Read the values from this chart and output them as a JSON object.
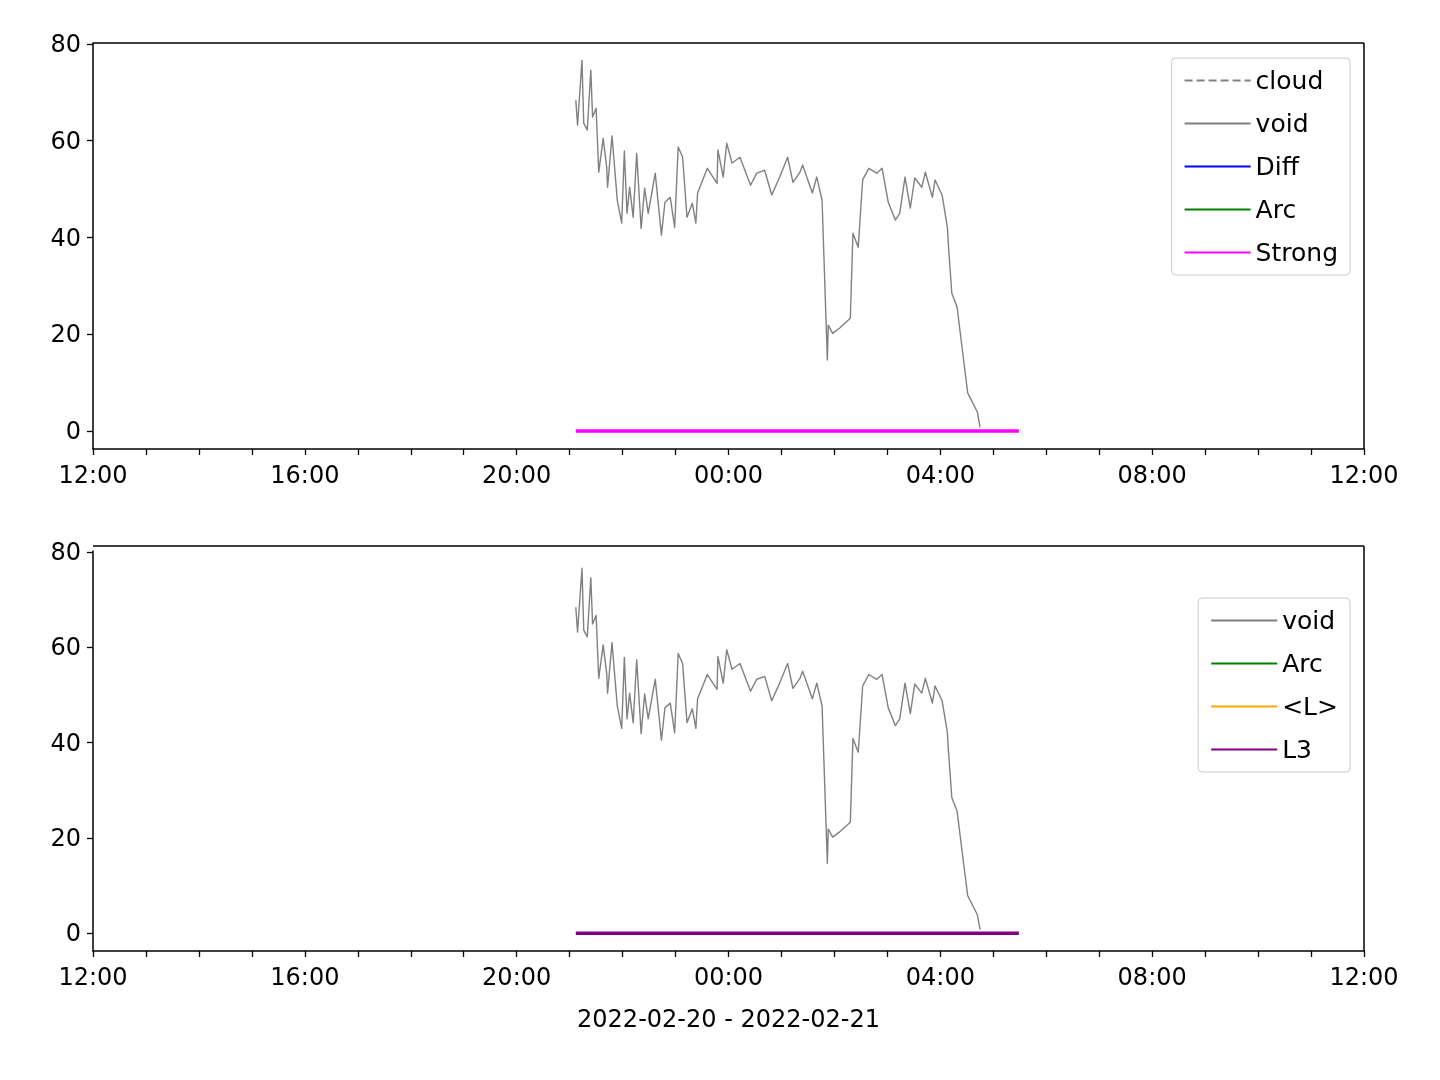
{
  "chart_data": [
    {
      "type": "line",
      "ylim": [
        -3.7,
        80.2
      ],
      "yticks": [
        0,
        20,
        40,
        60,
        80
      ],
      "xlim": [
        "2022-02-20T12:00",
        "2022-02-21T12:00"
      ],
      "xticks": [
        {
          "value": "2022-02-20T12:00",
          "label": "12:00"
        },
        {
          "value": "2022-02-20T13:00",
          "label": null
        },
        {
          "value": "2022-02-20T14:00",
          "label": null
        },
        {
          "value": "2022-02-20T15:00",
          "label": null
        },
        {
          "value": "2022-02-20T16:00",
          "label": "16:00"
        },
        {
          "value": "2022-02-20T17:00",
          "label": null
        },
        {
          "value": "2022-02-20T18:00",
          "label": null
        },
        {
          "value": "2022-02-20T19:00",
          "label": null
        },
        {
          "value": "2022-02-20T20:00",
          "label": "20:00"
        },
        {
          "value": "2022-02-20T21:00",
          "label": null
        },
        {
          "value": "2022-02-20T22:00",
          "label": null
        },
        {
          "value": "2022-02-20T23:00",
          "label": null
        },
        {
          "value": "2022-02-21T00:00",
          "label": "00:00"
        },
        {
          "value": "2022-02-21T01:00",
          "label": null
        },
        {
          "value": "2022-02-21T02:00",
          "label": null
        },
        {
          "value": "2022-02-21T03:00",
          "label": null
        },
        {
          "value": "2022-02-21T04:00",
          "label": "04:00"
        },
        {
          "value": "2022-02-21T05:00",
          "label": null
        },
        {
          "value": "2022-02-21T06:00",
          "label": null
        },
        {
          "value": "2022-02-21T07:00",
          "label": null
        },
        {
          "value": "2022-02-21T08:00",
          "label": "08:00"
        },
        {
          "value": "2022-02-21T09:00",
          "label": null
        },
        {
          "value": "2022-02-21T10:00",
          "label": null
        },
        {
          "value": "2022-02-21T11:00",
          "label": null
        },
        {
          "value": "2022-02-21T12:00",
          "label": "12:00"
        }
      ],
      "legend": "top right",
      "grid": false,
      "marker": "none",
      "series": [
        {
          "name": "cloud",
          "color": "#808080",
          "line_style": "dashed"
        },
        {
          "name": "void",
          "color": "#808080",
          "x": [
            "2022-02-20T21:07",
            "2022-02-20T21:09",
            "2022-02-20T21:14",
            "2022-02-20T21:16",
            "2022-02-20T21:20",
            "2022-02-20T21:24",
            "2022-02-20T21:26",
            "2022-02-20T21:30",
            "2022-02-20T21:33",
            "2022-02-20T21:38",
            "2022-02-20T21:42",
            "2022-02-20T21:43",
            "2022-02-20T21:48",
            "2022-02-20T21:54",
            "2022-02-20T21:59",
            "2022-02-20T22:02",
            "2022-02-20T22:05",
            "2022-02-20T22:08",
            "2022-02-20T22:12",
            "2022-02-20T22:16",
            "2022-02-20T22:21",
            "2022-02-20T22:25",
            "2022-02-20T22:29",
            "2022-02-20T22:37",
            "2022-02-20T22:44",
            "2022-02-20T22:48",
            "2022-02-20T22:54",
            "2022-02-20T22:59",
            "2022-02-20T23:03",
            "2022-02-20T23:08",
            "2022-02-20T23:13",
            "2022-02-20T23:19",
            "2022-02-20T23:23",
            "2022-02-20T23:25",
            "2022-02-20T23:36",
            "2022-02-20T23:47",
            "2022-02-20T23:48",
            "2022-02-20T23:54",
            "2022-02-20T23:58",
            "2022-02-21T00:04",
            "2022-02-21T00:13",
            "2022-02-21T00:25",
            "2022-02-21T00:32",
            "2022-02-21T00:41",
            "2022-02-21T00:49",
            "2022-02-21T00:58",
            "2022-02-21T01:07",
            "2022-02-21T01:13",
            "2022-02-21T01:21",
            "2022-02-21T01:24",
            "2022-02-21T01:35",
            "2022-02-21T01:40",
            "2022-02-21T01:46",
            "2022-02-21T01:52",
            "2022-02-21T01:53",
            "2022-02-21T01:58",
            "2022-02-21T02:06",
            "2022-02-21T02:18",
            "2022-02-21T02:21",
            "2022-02-21T02:27",
            "2022-02-21T02:32",
            "2022-02-21T02:39",
            "2022-02-21T02:48",
            "2022-02-21T02:54",
            "2022-02-21T03:01",
            "2022-02-21T03:09",
            "2022-02-21T03:14",
            "2022-02-21T03:20",
            "2022-02-21T03:26",
            "2022-02-21T03:31",
            "2022-02-21T03:39",
            "2022-02-21T03:43",
            "2022-02-21T03:51",
            "2022-02-21T03:54",
            "2022-02-21T04:02",
            "2022-02-21T04:08",
            "2022-02-21T04:09",
            "2022-02-21T04:13",
            "2022-02-21T04:19",
            "2022-02-21T04:25",
            "2022-02-21T04:31",
            "2022-02-21T04:42",
            "2022-02-21T04:45"
          ],
          "values": [
            68.4,
            63.2,
            76.6,
            63.6,
            62.2,
            74.6,
            64.9,
            66.7,
            53.5,
            60.5,
            54.5,
            50.4,
            61.0,
            47.7,
            43.0,
            57.9,
            45.0,
            50.4,
            44.2,
            57.4,
            41.9,
            50.2,
            45.0,
            53.3,
            40.5,
            47.3,
            48.3,
            42.1,
            58.7,
            56.6,
            44.2,
            47.1,
            43.0,
            49.2,
            54.3,
            51.2,
            58.1,
            52.5,
            59.5,
            55.4,
            56.6,
            50.8,
            53.3,
            53.9,
            48.8,
            52.5,
            56.6,
            51.4,
            53.5,
            55.0,
            49.2,
            52.5,
            47.7,
            14.7,
            21.9,
            20.2,
            21.3,
            23.3,
            40.9,
            38.0,
            51.9,
            54.3,
            53.3,
            54.3,
            47.3,
            43.6,
            45.0,
            52.5,
            46.1,
            52.3,
            50.4,
            53.5,
            48.3,
            51.9,
            48.8,
            42.1,
            38.8,
            28.5,
            25.6,
            16.7,
            7.9,
            3.9,
            0.8
          ]
        },
        {
          "name": "Diff",
          "color": "#0000ff"
        },
        {
          "name": "Arc",
          "color": "#008000"
        },
        {
          "name": "Strong",
          "color": "#ff00ff",
          "x": [
            "2022-02-20T21:07",
            "2022-02-21T05:29"
          ],
          "values": [
            0,
            0
          ]
        }
      ]
    },
    {
      "type": "line",
      "ylim": [
        -3.7,
        80.2
      ],
      "yticks": [
        0,
        20,
        40,
        60,
        80
      ],
      "xlim": [
        "2022-02-20T12:00",
        "2022-02-21T12:00"
      ],
      "xlabel": "2022-02-20 - 2022-02-21",
      "xticks": [
        {
          "value": "2022-02-20T12:00",
          "label": "12:00"
        },
        {
          "value": "2022-02-20T13:00",
          "label": null
        },
        {
          "value": "2022-02-20T14:00",
          "label": null
        },
        {
          "value": "2022-02-20T15:00",
          "label": null
        },
        {
          "value": "2022-02-20T16:00",
          "label": "16:00"
        },
        {
          "value": "2022-02-20T17:00",
          "label": null
        },
        {
          "value": "2022-02-20T18:00",
          "label": null
        },
        {
          "value": "2022-02-20T19:00",
          "label": null
        },
        {
          "value": "2022-02-20T20:00",
          "label": "20:00"
        },
        {
          "value": "2022-02-20T21:00",
          "label": null
        },
        {
          "value": "2022-02-20T22:00",
          "label": null
        },
        {
          "value": "2022-02-20T23:00",
          "label": null
        },
        {
          "value": "2022-02-21T00:00",
          "label": "00:00"
        },
        {
          "value": "2022-02-21T01:00",
          "label": null
        },
        {
          "value": "2022-02-21T02:00",
          "label": null
        },
        {
          "value": "2022-02-21T03:00",
          "label": null
        },
        {
          "value": "2022-02-21T04:00",
          "label": "04:00"
        },
        {
          "value": "2022-02-21T05:00",
          "label": null
        },
        {
          "value": "2022-02-21T06:00",
          "label": null
        },
        {
          "value": "2022-02-21T07:00",
          "label": null
        },
        {
          "value": "2022-02-21T08:00",
          "label": "08:00"
        },
        {
          "value": "2022-02-21T09:00",
          "label": null
        },
        {
          "value": "2022-02-21T10:00",
          "label": null
        },
        {
          "value": "2022-02-21T11:00",
          "label": null
        },
        {
          "value": "2022-02-21T12:00",
          "label": "12:00"
        }
      ],
      "legend": "top right",
      "grid": false,
      "marker": "none",
      "series": [
        {
          "name": "void",
          "color": "#808080",
          "x": [
            "2022-02-20T21:07",
            "2022-02-20T21:09",
            "2022-02-20T21:14",
            "2022-02-20T21:16",
            "2022-02-20T21:20",
            "2022-02-20T21:24",
            "2022-02-20T21:26",
            "2022-02-20T21:30",
            "2022-02-20T21:33",
            "2022-02-20T21:38",
            "2022-02-20T21:42",
            "2022-02-20T21:43",
            "2022-02-20T21:48",
            "2022-02-20T21:54",
            "2022-02-20T21:59",
            "2022-02-20T22:02",
            "2022-02-20T22:05",
            "2022-02-20T22:08",
            "2022-02-20T22:12",
            "2022-02-20T22:16",
            "2022-02-20T22:21",
            "2022-02-20T22:25",
            "2022-02-20T22:29",
            "2022-02-20T22:37",
            "2022-02-20T22:44",
            "2022-02-20T22:48",
            "2022-02-20T22:54",
            "2022-02-20T22:59",
            "2022-02-20T23:03",
            "2022-02-20T23:08",
            "2022-02-20T23:13",
            "2022-02-20T23:19",
            "2022-02-20T23:23",
            "2022-02-20T23:25",
            "2022-02-20T23:36",
            "2022-02-20T23:47",
            "2022-02-20T23:48",
            "2022-02-20T23:54",
            "2022-02-20T23:58",
            "2022-02-21T00:04",
            "2022-02-21T00:13",
            "2022-02-21T00:25",
            "2022-02-21T00:32",
            "2022-02-21T00:41",
            "2022-02-21T00:49",
            "2022-02-21T00:58",
            "2022-02-21T01:07",
            "2022-02-21T01:13",
            "2022-02-21T01:21",
            "2022-02-21T01:24",
            "2022-02-21T01:35",
            "2022-02-21T01:40",
            "2022-02-21T01:46",
            "2022-02-21T01:52",
            "2022-02-21T01:53",
            "2022-02-21T01:58",
            "2022-02-21T02:06",
            "2022-02-21T02:18",
            "2022-02-21T02:21",
            "2022-02-21T02:27",
            "2022-02-21T02:32",
            "2022-02-21T02:39",
            "2022-02-21T02:48",
            "2022-02-21T02:54",
            "2022-02-21T03:01",
            "2022-02-21T03:09",
            "2022-02-21T03:14",
            "2022-02-21T03:20",
            "2022-02-21T03:26",
            "2022-02-21T03:31",
            "2022-02-21T03:39",
            "2022-02-21T03:43",
            "2022-02-21T03:51",
            "2022-02-21T03:54",
            "2022-02-21T04:02",
            "2022-02-21T04:08",
            "2022-02-21T04:09",
            "2022-02-21T04:13",
            "2022-02-21T04:19",
            "2022-02-21T04:25",
            "2022-02-21T04:31",
            "2022-02-21T04:42",
            "2022-02-21T04:45"
          ],
          "values": [
            68.4,
            63.2,
            76.6,
            63.6,
            62.2,
            74.6,
            64.9,
            66.7,
            53.5,
            60.5,
            54.5,
            50.4,
            61.0,
            47.7,
            43.0,
            57.9,
            45.0,
            50.4,
            44.2,
            57.4,
            41.9,
            50.2,
            45.0,
            53.3,
            40.5,
            47.3,
            48.3,
            42.1,
            58.7,
            56.6,
            44.2,
            47.1,
            43.0,
            49.2,
            54.3,
            51.2,
            58.1,
            52.5,
            59.5,
            55.4,
            56.6,
            50.8,
            53.3,
            53.9,
            48.8,
            52.5,
            56.6,
            51.4,
            53.5,
            55.0,
            49.2,
            52.5,
            47.7,
            14.7,
            21.9,
            20.2,
            21.3,
            23.3,
            40.9,
            38.0,
            51.9,
            54.3,
            53.3,
            54.3,
            47.3,
            43.6,
            45.0,
            52.5,
            46.1,
            52.3,
            50.4,
            53.5,
            48.3,
            51.9,
            48.8,
            42.1,
            38.8,
            28.5,
            25.6,
            16.7,
            7.9,
            3.9,
            0.8
          ]
        },
        {
          "name": "Arc",
          "color": "#008000"
        },
        {
          "name": "<L>",
          "color": "#ffa500"
        },
        {
          "name": "L3",
          "color": "#800080",
          "x": [
            "2022-02-20T21:07",
            "2022-02-21T05:29"
          ],
          "values": [
            0,
            0
          ]
        }
      ]
    }
  ]
}
